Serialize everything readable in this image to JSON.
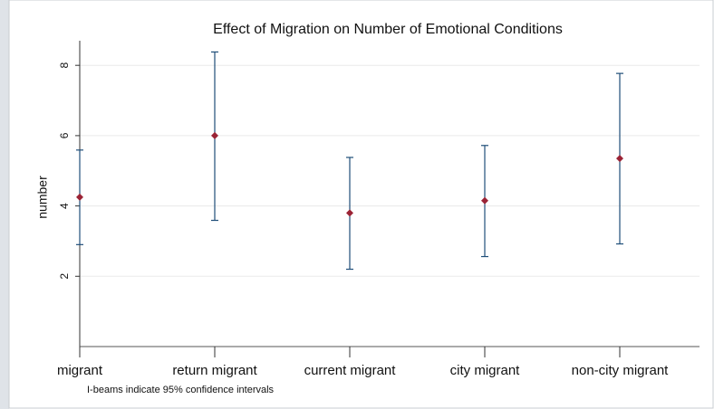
{
  "chart_data": {
    "type": "errorbar",
    "title": "Effect of Migration on Number of Emotional Conditions",
    "y_label": "number",
    "note": "I-beams indicate 95% confidence intervals",
    "categories": [
      "migrant",
      "return migrant",
      "current migrant",
      "city migrant",
      "non-city migrant"
    ],
    "values": [
      4.25,
      6.0,
      3.8,
      4.15,
      5.35
    ],
    "ci_low": [
      2.9,
      3.59,
      2.2,
      2.56,
      2.92
    ],
    "ci_high": [
      5.59,
      8.38,
      5.38,
      5.72,
      7.77
    ],
    "color": "#9b2335",
    "bar_color": "#1f4e79",
    "ylim": [
      0,
      8.7
    ],
    "yticks": [
      2,
      4,
      6,
      8
    ],
    "grid": true
  }
}
